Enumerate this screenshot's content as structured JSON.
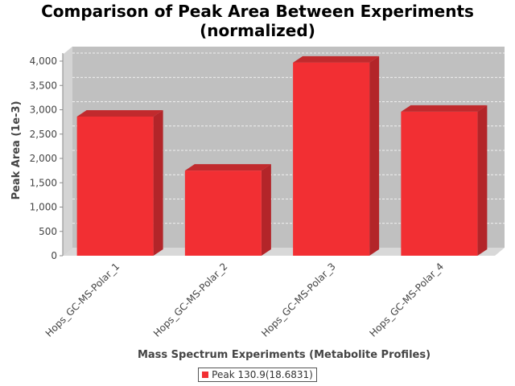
{
  "title_line1": "Comparison of Peak Area Between Experiments",
  "title_line2": "(normalized)",
  "chart_data": {
    "type": "bar",
    "title": "Comparison of Peak Area Between Experiments (normalized)",
    "xlabel": "Mass Spectrum Experiments (Metabolite Profiles)",
    "ylabel": "Peak Area (1e-3)",
    "categories": [
      "Hops_GC-MS-Polar_1",
      "Hops_GC-MS-Polar_2",
      "Hops_GC-MS-Polar_3",
      "Hops_GC-MS-Polar_4"
    ],
    "series": [
      {
        "name": "Peak 130.9(18.6831)",
        "values": [
          2860,
          1750,
          3970,
          2960
        ],
        "color": "#f22f33"
      }
    ],
    "ylim": [
      0,
      4000
    ],
    "yticks": [
      0,
      500,
      1000,
      1500,
      2000,
      2500,
      3000,
      3500,
      4000
    ],
    "ytick_labels": [
      "0",
      "500",
      "1,000",
      "1,500",
      "2,000",
      "2,500",
      "3,000",
      "3,500",
      "4,000"
    ],
    "grid": true,
    "legend_position": "bottom",
    "plot_background": "#c0c0c0",
    "bar_side_color": "#b32529",
    "bar_top_color": "#c12a2d"
  }
}
